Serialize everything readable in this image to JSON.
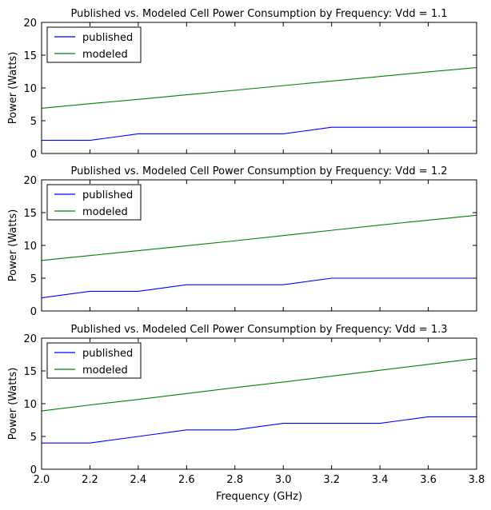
{
  "chart_data": [
    {
      "type": "line",
      "title": "Published vs. Modeled Cell Power Consumption by Frequency: Vdd = 1.1",
      "xlabel": "",
      "ylabel": "Power (Watts)",
      "xlim": [
        2.0,
        3.8
      ],
      "ylim": [
        0,
        20
      ],
      "yticks": [
        0,
        5,
        10,
        15,
        20
      ],
      "yticklabels": [
        "0",
        "5",
        "10",
        "15",
        "20"
      ],
      "xticklabels_shown": false,
      "legend_position": "top-left",
      "grid": false,
      "series": [
        {
          "name": "published",
          "color": "#0000ff",
          "x": [
            2.0,
            2.2,
            2.4,
            2.6,
            2.8,
            3.0,
            3.2,
            3.4,
            3.6,
            3.8
          ],
          "y": [
            2,
            2,
            3,
            3,
            3,
            3,
            4,
            4,
            4,
            4
          ]
        },
        {
          "name": "modeled",
          "color": "#008000",
          "x": [
            2.0,
            2.2,
            2.4,
            2.6,
            2.8,
            3.0,
            3.2,
            3.4,
            3.6,
            3.8
          ],
          "y": [
            6.9,
            7.6,
            8.25,
            8.95,
            9.65,
            10.35,
            11.05,
            11.75,
            12.45,
            13.1
          ]
        }
      ]
    },
    {
      "type": "line",
      "title": "Published vs. Modeled Cell Power Consumption by Frequency: Vdd = 1.2",
      "xlabel": "",
      "ylabel": "Power (Watts)",
      "xlim": [
        2.0,
        3.8
      ],
      "ylim": [
        0,
        20
      ],
      "yticks": [
        0,
        5,
        10,
        15,
        20
      ],
      "yticklabels": [
        "0",
        "5",
        "10",
        "15",
        "20"
      ],
      "xticklabels_shown": false,
      "legend_position": "top-left",
      "grid": false,
      "series": [
        {
          "name": "published",
          "color": "#0000ff",
          "x": [
            2.0,
            2.2,
            2.4,
            2.6,
            2.8,
            3.0,
            3.2,
            3.4,
            3.6,
            3.8
          ],
          "y": [
            2,
            3,
            3,
            4,
            4,
            4,
            5,
            5,
            5,
            5
          ]
        },
        {
          "name": "modeled",
          "color": "#008000",
          "x": [
            2.0,
            2.2,
            2.4,
            2.6,
            2.8,
            3.0,
            3.2,
            3.4,
            3.6,
            3.8
          ],
          "y": [
            7.7,
            8.45,
            9.2,
            9.95,
            10.7,
            11.5,
            12.3,
            13.1,
            13.85,
            14.6
          ]
        }
      ]
    },
    {
      "type": "line",
      "title": "Published vs. Modeled Cell Power Consumption by Frequency: Vdd = 1.3",
      "xlabel": "Frequency (GHz)",
      "ylabel": "Power (Watts)",
      "xlim": [
        2.0,
        3.8
      ],
      "ylim": [
        0,
        20
      ],
      "yticks": [
        0,
        5,
        10,
        15,
        20
      ],
      "yticklabels": [
        "0",
        "5",
        "10",
        "15",
        "20"
      ],
      "xticks": [
        2.0,
        2.2,
        2.4,
        2.6,
        2.8,
        3.0,
        3.2,
        3.4,
        3.6,
        3.8
      ],
      "xticklabels": [
        "2.0",
        "2.2",
        "2.4",
        "2.6",
        "2.8",
        "3.0",
        "3.2",
        "3.4",
        "3.6",
        "3.8"
      ],
      "xticklabels_shown": true,
      "legend_position": "top-left",
      "grid": false,
      "series": [
        {
          "name": "published",
          "color": "#0000ff",
          "x": [
            2.0,
            2.2,
            2.4,
            2.6,
            2.8,
            3.0,
            3.2,
            3.4,
            3.6,
            3.8
          ],
          "y": [
            4,
            4,
            5,
            6,
            6,
            7,
            7,
            7,
            8,
            8
          ]
        },
        {
          "name": "modeled",
          "color": "#008000",
          "x": [
            2.0,
            2.2,
            2.4,
            2.6,
            2.8,
            3.0,
            3.2,
            3.4,
            3.6,
            3.8
          ],
          "y": [
            8.9,
            9.8,
            10.65,
            11.55,
            12.45,
            13.3,
            14.2,
            15.1,
            16.0,
            16.9
          ]
        }
      ]
    }
  ]
}
